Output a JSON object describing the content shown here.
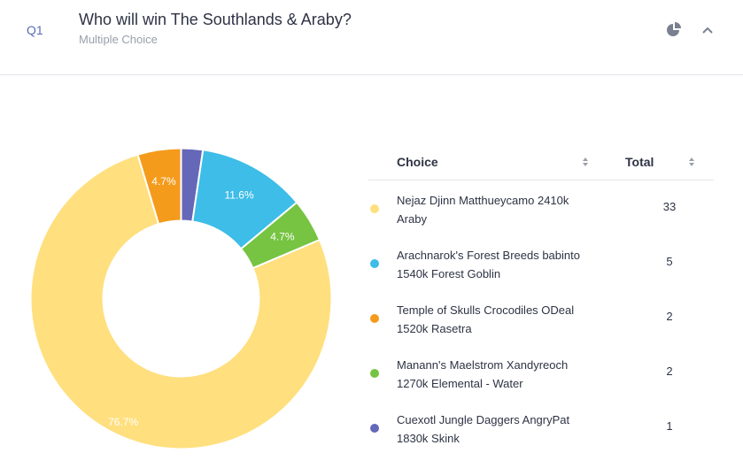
{
  "question": {
    "number": "Q1",
    "title": "Who will win The Southlands & Araby?",
    "type": "Multiple Choice",
    "icons": [
      "pie-chart-icon",
      "chevron-up-icon"
    ]
  },
  "table": {
    "col_choice": "Choice",
    "col_total": "Total",
    "rows": [
      {
        "line1": "Nejaz Djinn Matthueycamo 2410k",
        "line2": "Araby",
        "total": "33",
        "color": "#ffdf7e"
      },
      {
        "line1": "Arachnarok's Forest Breeds babinto",
        "line2": "1540k Forest Goblin",
        "total": "5",
        "color": "#3dbde8"
      },
      {
        "line1": "Temple of Skulls Crocodiles ODeal",
        "line2": "1520k Rasetra",
        "total": "2",
        "color": "#f49b1c"
      },
      {
        "line1": "Manann's Maelstrom Xandyreoch",
        "line2": "1270k Elemental - Water",
        "total": "2",
        "color": "#76c442"
      },
      {
        "line1": "Cuexotl Jungle Daggers AngryPat",
        "line2": "1830k Skink",
        "total": "1",
        "color": "#6568b8"
      }
    ]
  },
  "chart_data": {
    "type": "pie",
    "style": "donut",
    "title": "",
    "slices": [
      {
        "label": "Nejaz Djinn Matthueycamo 2410k Araby",
        "value": 33,
        "percent_label": "76.7%",
        "color": "#ffdf7e"
      },
      {
        "label": "Temple of Skulls Crocodiles ODeal 1520k Rasetra",
        "value": 2,
        "percent_label": "4.7%",
        "color": "#f49b1c"
      },
      {
        "label": "Cuexotl Jungle Daggers AngryPat 1830k Skink",
        "value": 1,
        "percent_label": "",
        "color": "#6568b8"
      },
      {
        "label": "Arachnarok's Forest Breeds babinto 1540k Forest Goblin",
        "value": 5,
        "percent_label": "11.6%",
        "color": "#3dbde8"
      },
      {
        "label": "Manann's Maelstrom Xandyreoch 1270k Elemental - Water",
        "value": 2,
        "percent_label": "4.7%",
        "color": "#76c442"
      }
    ],
    "start": "top, clockwise from Cuexotl slice",
    "legend": "table-right"
  }
}
